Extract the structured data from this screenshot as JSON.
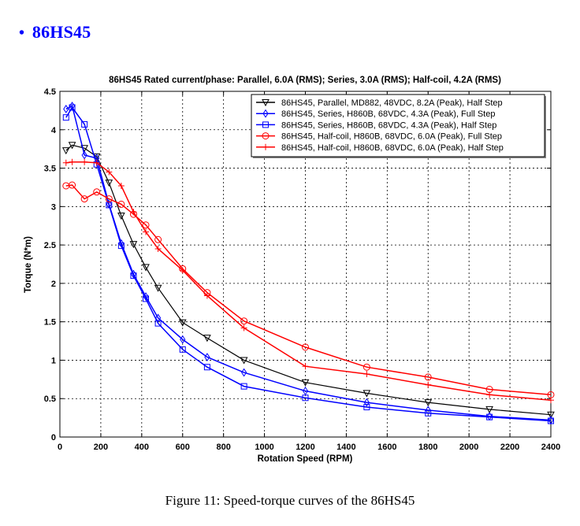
{
  "heading": {
    "bullet": "•",
    "text": "86HS45"
  },
  "caption": "Figure 11: Speed-torque curves of the 86HS45",
  "chart_data": {
    "type": "line",
    "title": "86HS45 Rated current/phase: Parallel, 6.0A (RMS); Series, 3.0A (RMS); Half-coil, 4.2A (RMS)",
    "xlabel": "Rotation Speed (RPM)",
    "ylabel": "Torque (N*m)",
    "xlim": [
      0,
      2400
    ],
    "ylim": [
      0,
      4.5
    ],
    "xticks": [
      0,
      200,
      400,
      600,
      800,
      1000,
      1200,
      1400,
      1600,
      1800,
      2000,
      2200,
      2400
    ],
    "yticks": [
      0,
      0.5,
      1,
      1.5,
      2,
      2.5,
      3,
      3.5,
      4,
      4.5
    ],
    "xtick_labels": [
      "0",
      "200",
      "400",
      "600",
      "800",
      "1000",
      "1200",
      "1400",
      "1600",
      "1800",
      "2000",
      "2200",
      "2400"
    ],
    "ytick_labels": [
      "0",
      "0.5",
      "1",
      "1.5",
      "2",
      "2.5",
      "3",
      "3.5",
      "4",
      "4.5"
    ],
    "grid": true,
    "legend_position": "top-right",
    "x": [
      30,
      60,
      120,
      180,
      240,
      300,
      360,
      420,
      480,
      600,
      720,
      900,
      1200,
      1500,
      1800,
      2100,
      2400
    ],
    "series": [
      {
        "name": "86HS45, Parallel, MD882, 48VDC, 8.2A (Peak), Half Step",
        "color": "#000000",
        "marker": "triangle-down",
        "values": [
          3.73,
          3.8,
          3.76,
          3.65,
          3.31,
          2.88,
          2.51,
          2.21,
          1.94,
          1.49,
          1.29,
          1.0,
          0.71,
          0.57,
          0.45,
          0.36,
          0.29
        ]
      },
      {
        "name": "86HS45, Series, H860B, 68VDC, 4.3A (Peak), Full Step",
        "color": "#0000ff",
        "marker": "diamond",
        "values": [
          4.27,
          4.31,
          3.67,
          3.63,
          3.03,
          2.52,
          2.12,
          1.83,
          1.55,
          1.27,
          1.04,
          0.84,
          0.6,
          0.45,
          0.35,
          0.27,
          0.22
        ]
      },
      {
        "name": "86HS45, Series, H860B, 68VDC, 4.3A (Peak), Half Step",
        "color": "#0000ff",
        "marker": "square",
        "values": [
          4.16,
          4.29,
          4.07,
          3.55,
          3.02,
          2.49,
          2.1,
          1.8,
          1.48,
          1.14,
          0.91,
          0.66,
          0.51,
          0.39,
          0.31,
          0.26,
          0.21
        ]
      },
      {
        "name": "86HS45, Half-coil, H860B, 68VDC, 6.0A (Peak), Full Step",
        "color": "#ff0000",
        "marker": "circle",
        "values": [
          3.27,
          3.28,
          3.1,
          3.19,
          3.1,
          3.03,
          2.9,
          2.76,
          2.57,
          2.19,
          1.88,
          1.51,
          1.17,
          0.91,
          0.78,
          0.62,
          0.55
        ]
      },
      {
        "name": "86HS45, Half-coil, H860B, 68VDC, 6.0A (Peak), Half Step",
        "color": "#ff0000",
        "marker": "plus",
        "values": [
          3.57,
          3.58,
          3.58,
          3.57,
          3.45,
          3.27,
          2.93,
          2.67,
          2.45,
          2.17,
          1.84,
          1.42,
          0.92,
          0.82,
          0.68,
          0.55,
          0.48
        ]
      }
    ]
  }
}
